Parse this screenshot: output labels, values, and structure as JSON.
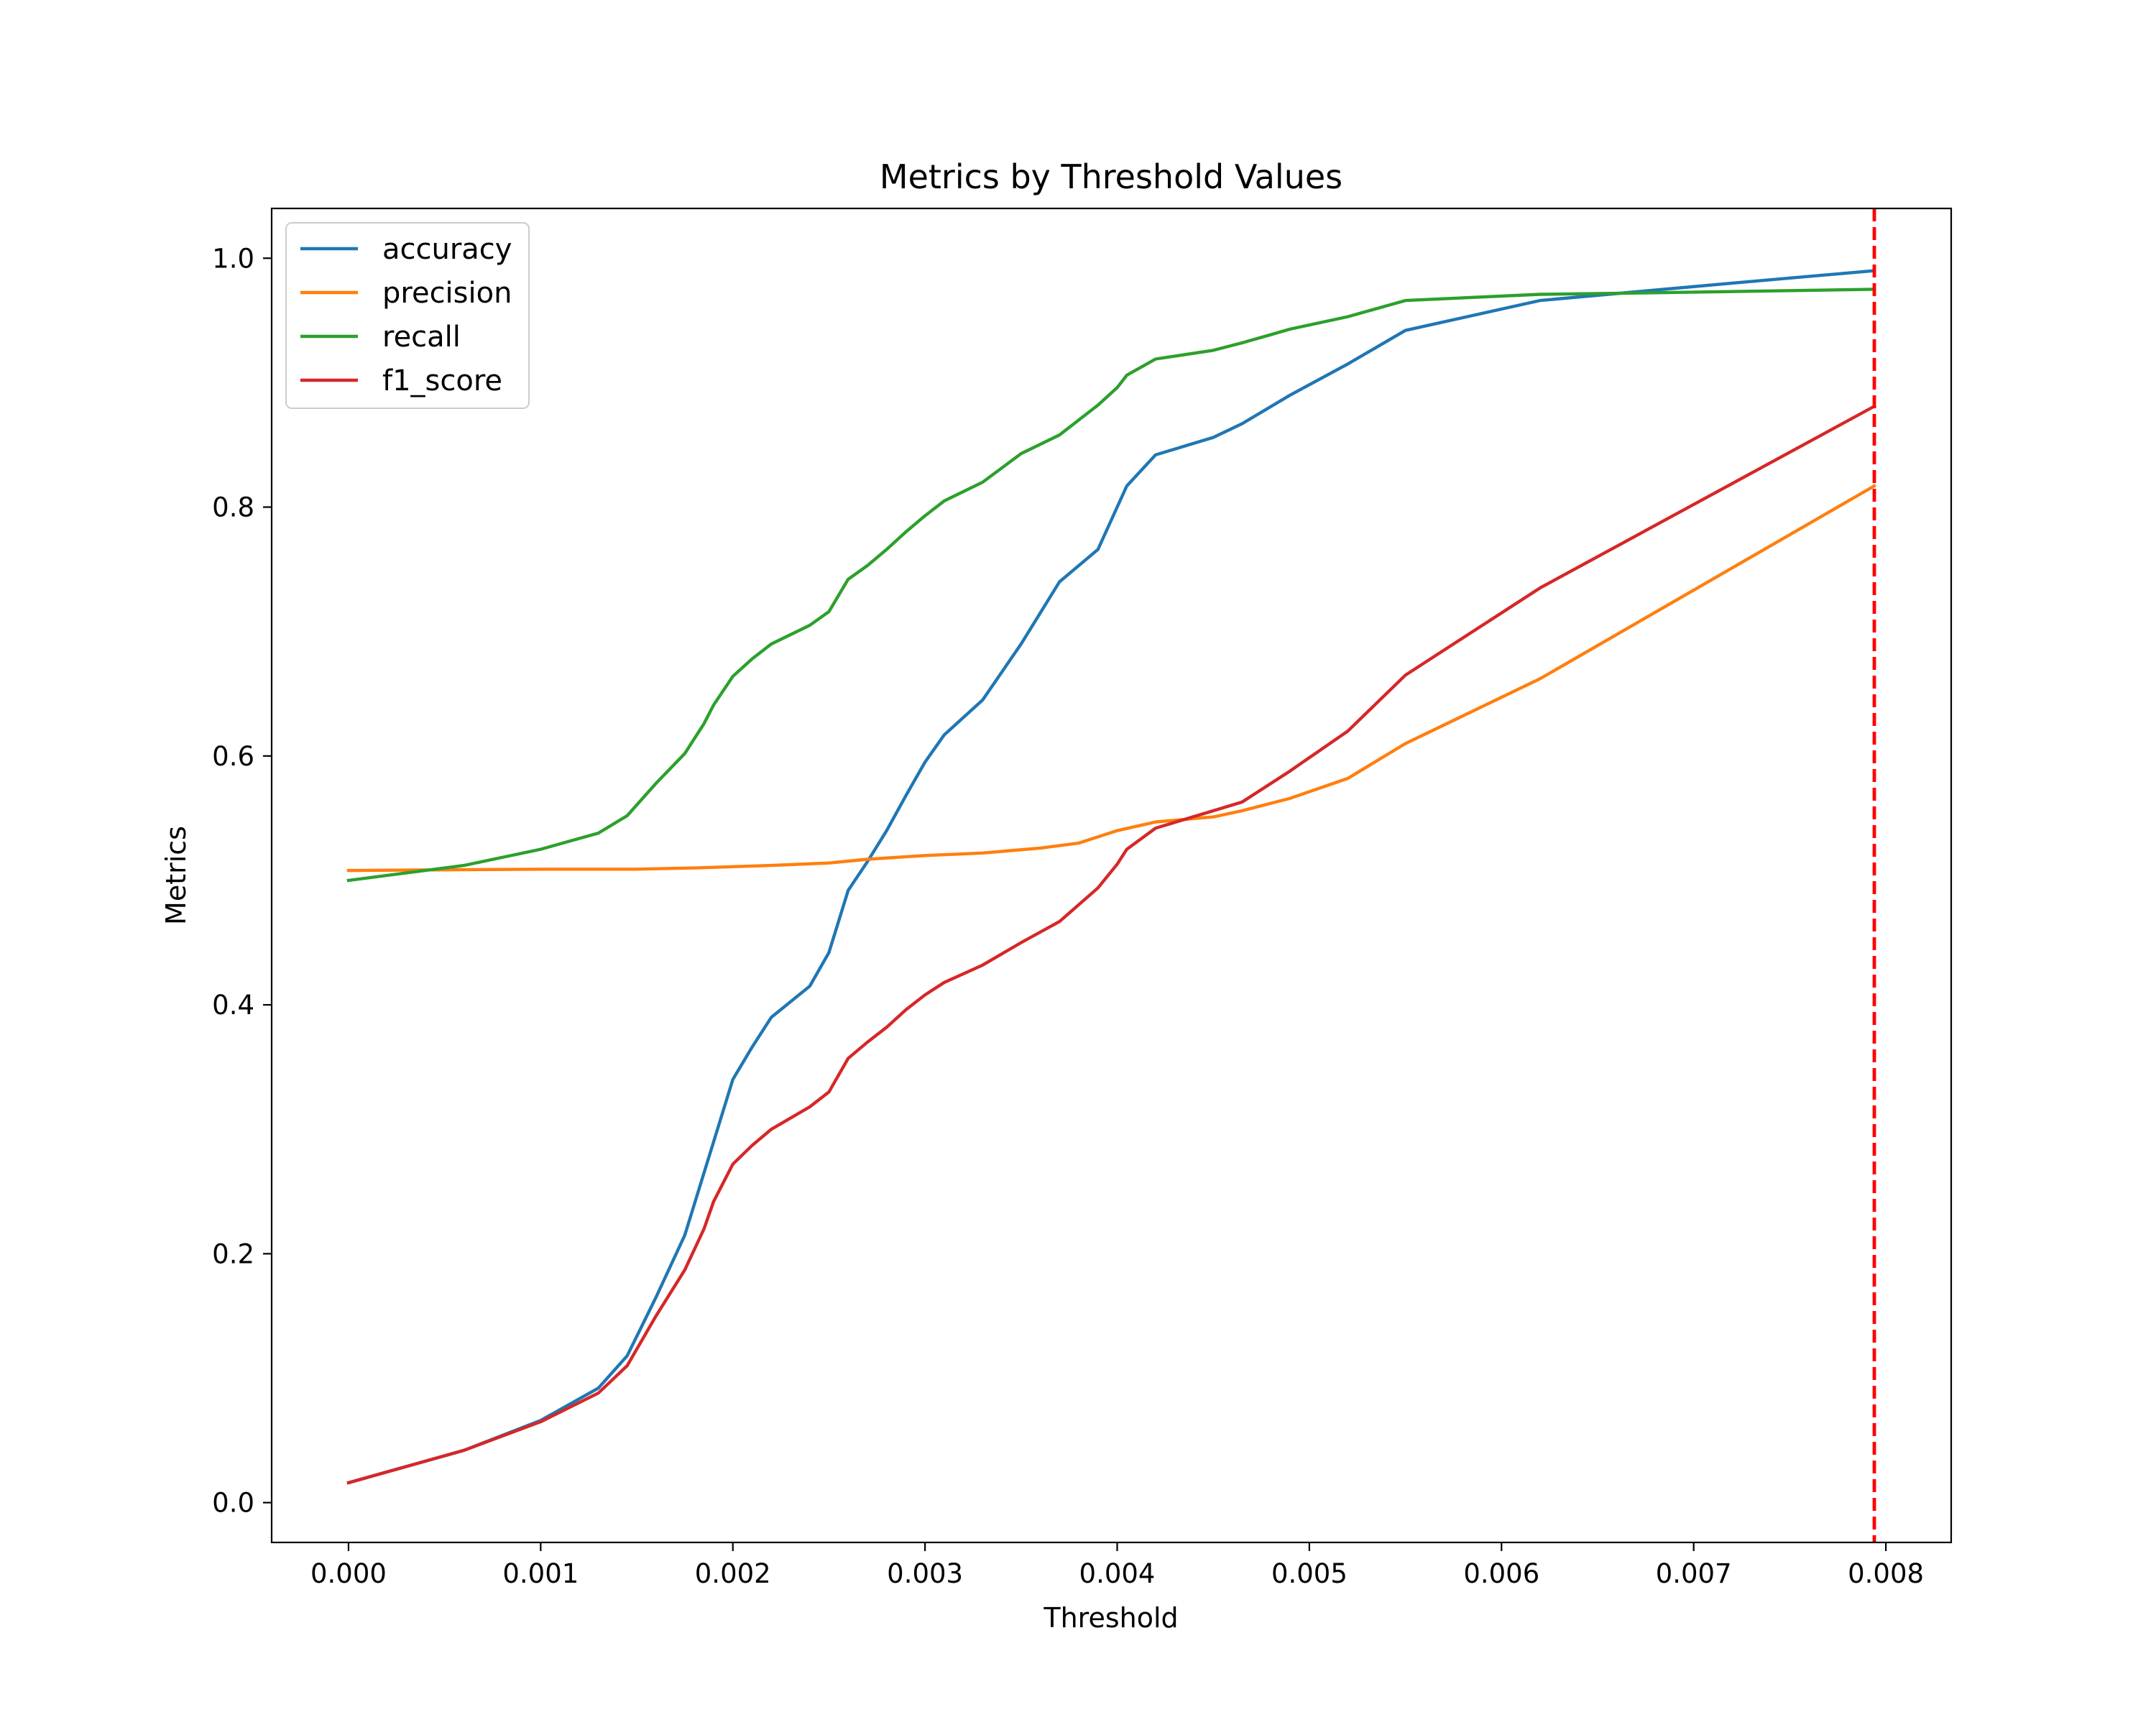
{
  "chart_data": {
    "type": "line",
    "title": "Metrics by Threshold Values",
    "xlabel": "Threshold",
    "ylabel": "Metrics",
    "xlim": [
      -0.0004,
      0.00834
    ],
    "ylim": [
      -0.032,
      1.04
    ],
    "xticks": [
      0.0,
      0.001,
      0.002,
      0.003,
      0.004,
      0.005,
      0.006,
      0.007,
      0.008
    ],
    "xtick_labels": [
      "0.000",
      "0.001",
      "0.002",
      "0.003",
      "0.004",
      "0.005",
      "0.006",
      "0.007",
      "0.008"
    ],
    "yticks": [
      0.0,
      0.2,
      0.4,
      0.6,
      0.8,
      1.0
    ],
    "ytick_labels": [
      "0.0",
      "0.2",
      "0.4",
      "0.6",
      "0.8",
      "1.0"
    ],
    "grid": false,
    "legend_position": "upper-left",
    "series": [
      {
        "name": "accuracy",
        "color": "#1f77b4",
        "points": [
          [
            0.0,
            0.016
          ],
          [
            0.0006,
            0.042
          ],
          [
            0.001,
            0.066
          ],
          [
            0.0013,
            0.092
          ],
          [
            0.00145,
            0.118
          ],
          [
            0.0016,
            0.165
          ],
          [
            0.00175,
            0.215
          ],
          [
            0.00185,
            0.265
          ],
          [
            0.0019,
            0.29
          ],
          [
            0.002,
            0.34
          ],
          [
            0.0021,
            0.366
          ],
          [
            0.0022,
            0.39
          ],
          [
            0.0024,
            0.415
          ],
          [
            0.0025,
            0.442
          ],
          [
            0.0026,
            0.492
          ],
          [
            0.0027,
            0.515
          ],
          [
            0.0028,
            0.54
          ],
          [
            0.0029,
            0.568
          ],
          [
            0.003,
            0.595
          ],
          [
            0.0031,
            0.617
          ],
          [
            0.0033,
            0.645
          ],
          [
            0.0035,
            0.69
          ],
          [
            0.0037,
            0.74
          ],
          [
            0.0039,
            0.766
          ],
          [
            0.004,
            0.8
          ],
          [
            0.00405,
            0.817
          ],
          [
            0.0042,
            0.842
          ],
          [
            0.0045,
            0.856
          ],
          [
            0.00465,
            0.867
          ],
          [
            0.0049,
            0.89
          ],
          [
            0.0052,
            0.915
          ],
          [
            0.0055,
            0.942
          ],
          [
            0.0062,
            0.966
          ],
          [
            0.0067,
            0.973
          ],
          [
            0.0072,
            0.98
          ],
          [
            0.00794,
            0.99
          ]
        ]
      },
      {
        "name": "precision",
        "color": "#ff7f0e",
        "points": [
          [
            0.0,
            0.508
          ],
          [
            0.001,
            0.509
          ],
          [
            0.0015,
            0.509
          ],
          [
            0.0018,
            0.51
          ],
          [
            0.0022,
            0.512
          ],
          [
            0.0025,
            0.514
          ],
          [
            0.0027,
            0.517
          ],
          [
            0.003,
            0.52
          ],
          [
            0.0033,
            0.522
          ],
          [
            0.0036,
            0.526
          ],
          [
            0.0038,
            0.53
          ],
          [
            0.0039,
            0.535
          ],
          [
            0.004,
            0.54
          ],
          [
            0.0042,
            0.547
          ],
          [
            0.0045,
            0.551
          ],
          [
            0.00465,
            0.556
          ],
          [
            0.0049,
            0.566
          ],
          [
            0.0052,
            0.582
          ],
          [
            0.0055,
            0.61
          ],
          [
            0.0062,
            0.662
          ],
          [
            0.00794,
            0.817
          ]
        ]
      },
      {
        "name": "recall",
        "color": "#2ca02c",
        "points": [
          [
            0.0,
            0.5
          ],
          [
            0.0006,
            0.512
          ],
          [
            0.001,
            0.525
          ],
          [
            0.0013,
            0.538
          ],
          [
            0.00145,
            0.552
          ],
          [
            0.0016,
            0.578
          ],
          [
            0.00175,
            0.602
          ],
          [
            0.00185,
            0.626
          ],
          [
            0.0019,
            0.641
          ],
          [
            0.002,
            0.664
          ],
          [
            0.0021,
            0.678
          ],
          [
            0.0022,
            0.69
          ],
          [
            0.0024,
            0.705
          ],
          [
            0.0025,
            0.716
          ],
          [
            0.0026,
            0.742
          ],
          [
            0.0027,
            0.753
          ],
          [
            0.0028,
            0.766
          ],
          [
            0.0029,
            0.78
          ],
          [
            0.003,
            0.793
          ],
          [
            0.0031,
            0.805
          ],
          [
            0.0033,
            0.82
          ],
          [
            0.0035,
            0.843
          ],
          [
            0.0037,
            0.858
          ],
          [
            0.0039,
            0.882
          ],
          [
            0.004,
            0.896
          ],
          [
            0.00405,
            0.906
          ],
          [
            0.0042,
            0.919
          ],
          [
            0.0045,
            0.926
          ],
          [
            0.00465,
            0.932
          ],
          [
            0.0049,
            0.943
          ],
          [
            0.0052,
            0.953
          ],
          [
            0.0055,
            0.966
          ],
          [
            0.0062,
            0.971
          ],
          [
            0.0067,
            0.972
          ],
          [
            0.00794,
            0.975
          ]
        ]
      },
      {
        "name": "f1_score",
        "color": "#d62728",
        "points": [
          [
            0.0,
            0.016
          ],
          [
            0.0006,
            0.042
          ],
          [
            0.001,
            0.065
          ],
          [
            0.0013,
            0.088
          ],
          [
            0.00145,
            0.11
          ],
          [
            0.0016,
            0.15
          ],
          [
            0.00175,
            0.187
          ],
          [
            0.00185,
            0.22
          ],
          [
            0.0019,
            0.242
          ],
          [
            0.002,
            0.272
          ],
          [
            0.0021,
            0.287
          ],
          [
            0.0022,
            0.3
          ],
          [
            0.0024,
            0.318
          ],
          [
            0.0025,
            0.33
          ],
          [
            0.0026,
            0.357
          ],
          [
            0.0027,
            0.37
          ],
          [
            0.0028,
            0.382
          ],
          [
            0.0029,
            0.396
          ],
          [
            0.003,
            0.408
          ],
          [
            0.0031,
            0.418
          ],
          [
            0.0033,
            0.432
          ],
          [
            0.0035,
            0.45
          ],
          [
            0.0037,
            0.467
          ],
          [
            0.0039,
            0.494
          ],
          [
            0.004,
            0.513
          ],
          [
            0.00405,
            0.525
          ],
          [
            0.0042,
            0.542
          ],
          [
            0.0045,
            0.556
          ],
          [
            0.00465,
            0.563
          ],
          [
            0.0049,
            0.588
          ],
          [
            0.0052,
            0.62
          ],
          [
            0.0055,
            0.665
          ],
          [
            0.0062,
            0.735
          ],
          [
            0.00794,
            0.881
          ]
        ]
      }
    ],
    "vline": {
      "x": 0.00794,
      "color": "#ff0000",
      "style": "dashed"
    }
  }
}
